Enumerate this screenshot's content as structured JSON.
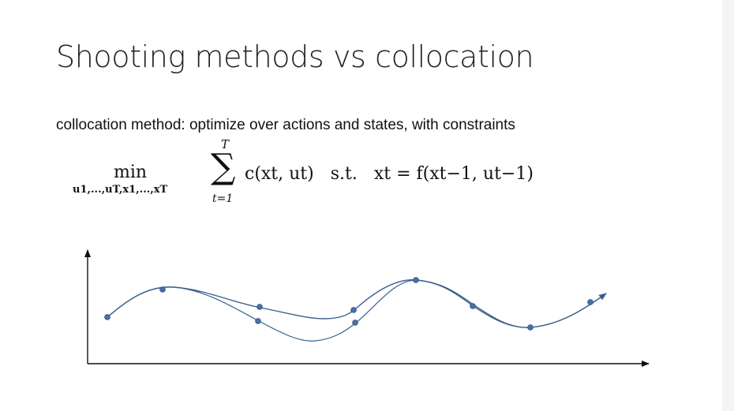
{
  "slide": {
    "title": "Shooting methods vs collocation",
    "subtitle": "collocation method: optimize over actions and states, with constraints",
    "equation": {
      "min_label": "min",
      "min_subscript": "u1,...,uT,x1,...,xT",
      "sum_upper": "T",
      "sum_lower": "t=1",
      "sigma": "∑",
      "cost_term": "c(xt, ut)",
      "st_label": "s.t.",
      "constraint": "xt = f(xt−1, ut−1)"
    }
  },
  "colors": {
    "curve": "#3b5f8f",
    "dot": "#4a6fa8",
    "axis": "#111111",
    "title": "#222222"
  }
}
